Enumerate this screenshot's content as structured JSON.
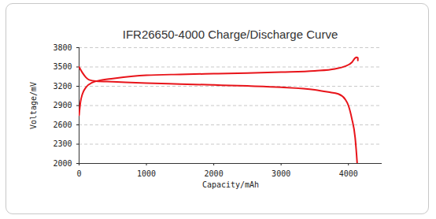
{
  "chart_data": {
    "type": "line",
    "title": "IFR26650-4000 Charge/Discharge Curve",
    "x_label": "Capacity/mAh",
    "y_label": "Voltage/mV",
    "xlim": [
      0,
      4500
    ],
    "xticks": [
      0,
      1000,
      2000,
      3000,
      4000
    ],
    "ylim": [
      2000,
      3800
    ],
    "yticks": [
      2000,
      2300,
      2600,
      2900,
      3200,
      3500,
      3800
    ],
    "grid": true,
    "series": [
      {
        "color": "#e8141a",
        "x": [
          0,
          20,
          50,
          100,
          200,
          300,
          500,
          800,
          1000,
          1500,
          2000,
          2500,
          3000,
          3500,
          3800,
          3950,
          4050,
          4100,
          4120,
          4140,
          4140
        ],
        "values": [
          2750,
          2950,
          3080,
          3180,
          3260,
          3290,
          3320,
          3355,
          3370,
          3385,
          3395,
          3405,
          3420,
          3440,
          3470,
          3510,
          3570,
          3640,
          3650,
          3640,
          3600
        ]
      },
      {
        "color": "#e8141a",
        "x": [
          0,
          50,
          100,
          150,
          250,
          500,
          1000,
          1500,
          2000,
          2500,
          3000,
          3500,
          3700,
          3850,
          3950,
          4000,
          4050,
          4100,
          4120,
          4130
        ],
        "values": [
          3500,
          3410,
          3340,
          3300,
          3280,
          3270,
          3250,
          3235,
          3220,
          3205,
          3185,
          3145,
          3110,
          3080,
          3000,
          2900,
          2700,
          2400,
          2150,
          2000
        ]
      }
    ]
  }
}
